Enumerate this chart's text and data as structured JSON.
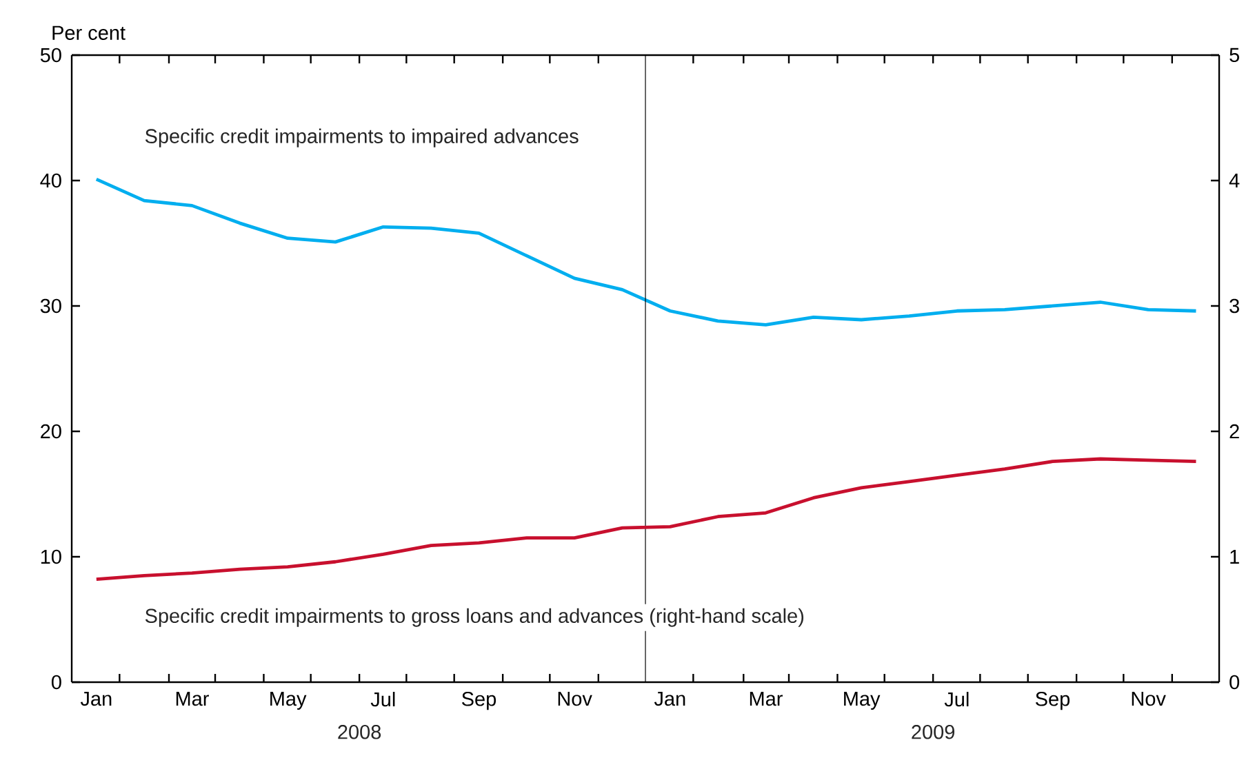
{
  "chart_data": {
    "type": "line",
    "ylabel": "Per cent",
    "x": [
      "2008-01",
      "2008-02",
      "2008-03",
      "2008-04",
      "2008-05",
      "2008-06",
      "2008-07",
      "2008-08",
      "2008-09",
      "2008-10",
      "2008-11",
      "2008-12",
      "2009-01",
      "2009-02",
      "2009-03",
      "2009-04",
      "2009-05",
      "2009-06",
      "2009-07",
      "2009-08",
      "2009-09",
      "2009-10",
      "2009-11",
      "2009-12"
    ],
    "series": [
      {
        "name": "Specific credit impairments to impaired advances",
        "color": "#00aeef",
        "values": [
          40.1,
          38.4,
          38.0,
          36.6,
          35.4,
          35.1,
          36.3,
          36.2,
          35.8,
          34.0,
          32.2,
          31.3,
          29.6,
          28.8,
          28.5,
          29.1,
          28.9,
          29.2,
          29.6,
          29.7,
          30.0,
          30.3,
          29.7,
          29.6
        ]
      },
      {
        "name": "Specific credit impairments to gross loans and advances (right-hand scale)",
        "color": "#c8102e",
        "axis": "y2",
        "values": [
          0.82,
          0.85,
          0.87,
          0.9,
          0.92,
          0.96,
          1.02,
          1.09,
          1.11,
          1.15,
          1.15,
          1.23,
          1.24,
          1.32,
          1.35,
          1.47,
          1.55,
          1.6,
          1.65,
          1.7,
          1.76,
          1.78,
          1.77,
          1.76
        ]
      }
    ],
    "xlim": [
      "2007-12-16",
      "2009-12-16"
    ],
    "xticks": [
      {
        "value": "2008-01",
        "label": "Jan"
      },
      {
        "value": "2008-03",
        "label": "Mar"
      },
      {
        "value": "2008-05",
        "label": "May"
      },
      {
        "value": "2008-07",
        "label": "Jul"
      },
      {
        "value": "2008-09",
        "label": "Sep"
      },
      {
        "value": "2008-11",
        "label": "Nov"
      },
      {
        "value": "2009-01",
        "label": "Jan"
      },
      {
        "value": "2009-03",
        "label": "Mar"
      },
      {
        "value": "2009-05",
        "label": "May"
      },
      {
        "value": "2009-07",
        "label": "Jul"
      },
      {
        "value": "2009-09",
        "label": "Sep"
      },
      {
        "value": "2009-11",
        "label": "Nov"
      },
      {
        "value": "2008-01-16",
        "label": null
      },
      {
        "value": "2008-02-16",
        "label": null
      },
      {
        "value": "2008-03-16",
        "label": null
      },
      {
        "value": "2008-04-16",
        "label": null
      },
      {
        "value": "2008-05-16",
        "label": null
      },
      {
        "value": "2008-06-16",
        "label": null
      },
      {
        "value": "2008-07-16",
        "label": null
      },
      {
        "value": "2008-08-16",
        "label": null
      },
      {
        "value": "2008-09-16",
        "label": null
      },
      {
        "value": "2008-10-16",
        "label": null
      },
      {
        "value": "2008-11-16",
        "label": null
      },
      {
        "value": "2009-01-16",
        "label": null
      },
      {
        "value": "2009-02-16",
        "label": null
      },
      {
        "value": "2009-03-16",
        "label": null
      },
      {
        "value": "2009-04-16",
        "label": null
      },
      {
        "value": "2009-05-16",
        "label": null
      },
      {
        "value": "2009-06-16",
        "label": null
      },
      {
        "value": "2009-07-16",
        "label": null
      },
      {
        "value": "2009-08-16",
        "label": null
      },
      {
        "value": "2009-09-16",
        "label": null
      },
      {
        "value": "2009-10-16",
        "label": null
      },
      {
        "value": "2009-11-16",
        "label": null
      }
    ],
    "ylim": [
      0,
      50
    ],
    "yticks": [
      0,
      10,
      20,
      30,
      40,
      50
    ],
    "y2lim": [
      0,
      5
    ],
    "y2ticks": [
      0,
      1,
      2,
      3,
      4,
      5
    ],
    "ref_lines": [
      {
        "axis": "x",
        "value": "2008-12-16",
        "color": "#000000"
      }
    ],
    "annotations": [
      "2008",
      "2009"
    ],
    "grid": false,
    "marker": "none",
    "line_style": "solid"
  }
}
